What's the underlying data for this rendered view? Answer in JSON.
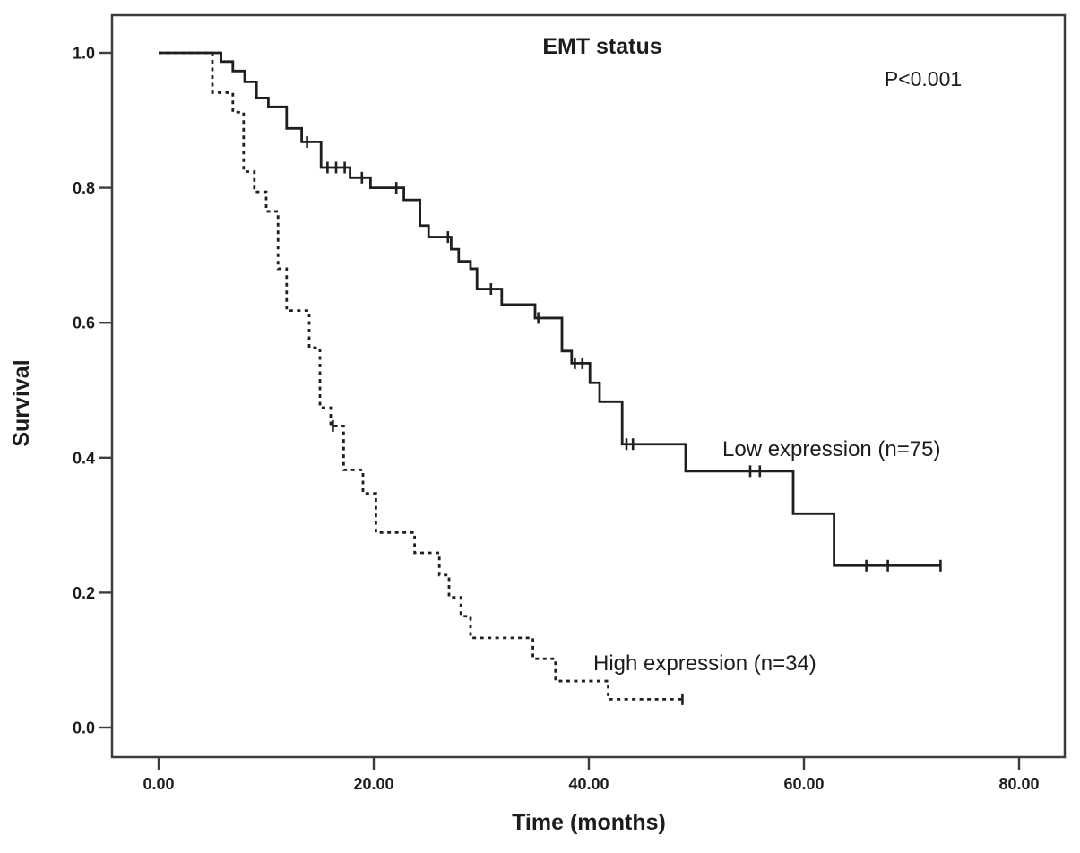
{
  "chart_data": {
    "type": "line",
    "subtype": "kaplan-meier-step",
    "title": "EMT status",
    "annotation": "P<0.001",
    "xlabel": "Time (months)",
    "ylabel": "Survival",
    "grid": false,
    "legend_position": "inline-labels-on-plot",
    "xlim": [
      0,
      80
    ],
    "ylim": [
      0.0,
      1.0
    ],
    "x_ticks": [
      {
        "value": 0,
        "label": "0.00"
      },
      {
        "value": 20,
        "label": "20.00"
      },
      {
        "value": 40,
        "label": "40.00"
      },
      {
        "value": 60,
        "label": "60.00"
      },
      {
        "value": 80,
        "label": "80.00"
      }
    ],
    "y_ticks": [
      {
        "value": 1.0,
        "label": "1.0"
      },
      {
        "value": 0.8,
        "label": "0.8"
      },
      {
        "value": 0.6,
        "label": "0.6"
      },
      {
        "value": 0.4,
        "label": "0.4"
      },
      {
        "value": 0.2,
        "label": "0.2"
      },
      {
        "value": 0.0,
        "label": "0.0"
      }
    ],
    "colors": {
      "line": "#1f1f1f",
      "frame": "#3d3d3d",
      "background": "#ffffff"
    },
    "series": [
      {
        "name": "low-expression",
        "label": "Low expression (n=75)",
        "n": 75,
        "line_style": "solid",
        "end_month": 72.7,
        "points": [
          [
            0,
            1.0
          ],
          [
            5.8,
            0.987
          ],
          [
            6.9,
            0.973
          ],
          [
            8.0,
            0.957
          ],
          [
            9.1,
            0.933
          ],
          [
            10.2,
            0.92
          ],
          [
            11.9,
            0.888
          ],
          [
            13.3,
            0.868
          ],
          [
            15.1,
            0.83
          ],
          [
            17.8,
            0.815
          ],
          [
            19.7,
            0.8
          ],
          [
            22.8,
            0.782
          ],
          [
            24.3,
            0.744
          ],
          [
            25.1,
            0.727
          ],
          [
            27.2,
            0.709
          ],
          [
            27.9,
            0.691
          ],
          [
            29.0,
            0.68
          ],
          [
            29.6,
            0.65
          ],
          [
            31.9,
            0.627
          ],
          [
            35.0,
            0.607
          ],
          [
            37.5,
            0.558
          ],
          [
            38.4,
            0.54
          ],
          [
            40.1,
            0.511
          ],
          [
            41.0,
            0.483
          ],
          [
            43.1,
            0.42
          ],
          [
            49.0,
            0.38
          ],
          [
            59.0,
            0.317
          ],
          [
            62.8,
            0.24
          ]
        ],
        "censor_marks": [
          [
            13.8,
            0.868
          ],
          [
            15.7,
            0.83
          ],
          [
            16.5,
            0.83
          ],
          [
            17.3,
            0.83
          ],
          [
            18.9,
            0.815
          ],
          [
            22.1,
            0.8
          ],
          [
            26.9,
            0.727
          ],
          [
            30.9,
            0.65
          ],
          [
            35.3,
            0.607
          ],
          [
            38.7,
            0.54
          ],
          [
            39.4,
            0.54
          ],
          [
            43.5,
            0.42
          ],
          [
            44.1,
            0.42
          ],
          [
            55.0,
            0.38
          ],
          [
            55.9,
            0.38
          ],
          [
            65.8,
            0.24
          ],
          [
            67.8,
            0.24
          ],
          [
            72.7,
            0.24
          ]
        ]
      },
      {
        "name": "high-expression",
        "label": "High expression (n=34)",
        "n": 34,
        "line_style": "dashed",
        "end_month": 48.7,
        "points": [
          [
            0,
            1.0
          ],
          [
            5.0,
            0.941
          ],
          [
            6.9,
            0.912
          ],
          [
            7.9,
            0.824
          ],
          [
            8.9,
            0.794
          ],
          [
            10.0,
            0.765
          ],
          [
            11.1,
            0.68
          ],
          [
            11.9,
            0.618
          ],
          [
            14.0,
            0.563
          ],
          [
            15.0,
            0.474
          ],
          [
            16.0,
            0.447
          ],
          [
            17.2,
            0.382
          ],
          [
            19.0,
            0.347
          ],
          [
            20.2,
            0.289
          ],
          [
            23.8,
            0.259
          ],
          [
            26.1,
            0.226
          ],
          [
            27.0,
            0.193
          ],
          [
            28.1,
            0.165
          ],
          [
            29.0,
            0.133
          ],
          [
            34.8,
            0.102
          ],
          [
            36.9,
            0.069
          ],
          [
            41.8,
            0.042
          ]
        ],
        "censor_marks": [
          [
            16.2,
            0.447
          ],
          [
            48.7,
            0.042
          ]
        ]
      }
    ]
  }
}
